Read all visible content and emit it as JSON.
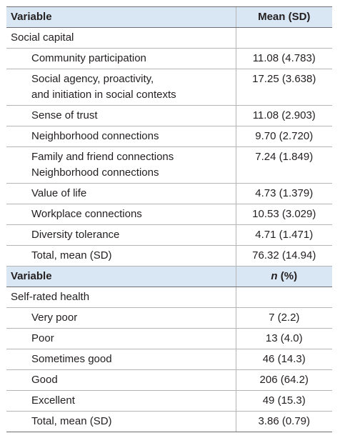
{
  "table": {
    "header1": {
      "variable": "Variable",
      "value": "Mean (SD)"
    },
    "section1": "Social capital",
    "social_capital_rows": [
      {
        "label": "Community participation",
        "value": "11.08 (4.783)"
      },
      {
        "label": "Social agency, proactivity,\nand initiation in social contexts",
        "value": "17.25 (3.638)"
      },
      {
        "label": "Sense of trust",
        "value": "11.08 (2.903)"
      },
      {
        "label": "Neighborhood connections",
        "value": "9.70 (2.720)"
      },
      {
        "label": "Family and friend connections\nNeighborhood connections",
        "value": "7.24 (1.849)"
      },
      {
        "label": "Value of life",
        "value": "4.73 (1.379)"
      },
      {
        "label": "Workplace connections",
        "value": "10.53 (3.029)"
      },
      {
        "label": "Diversity tolerance",
        "value": "4.71 (1.471)"
      },
      {
        "label": "Total, mean (SD)",
        "value": "76.32 (14.94)"
      }
    ],
    "header2": {
      "variable": "Variable",
      "value_italic": "n",
      "value_rest": " (%)"
    },
    "section2": "Self-rated health",
    "health_rows": [
      {
        "label": "Very poor",
        "value": "7 (2.2)"
      },
      {
        "label": "Poor",
        "value": "13 (4.0)"
      },
      {
        "label": "Sometimes good",
        "value": "46 (14.3)"
      },
      {
        "label": "Good",
        "value": "206 (64.2)"
      },
      {
        "label": "Excellent",
        "value": "49 (15.3)"
      },
      {
        "label": "Total, mean (SD)",
        "value": "3.86 (0.79)"
      }
    ]
  }
}
